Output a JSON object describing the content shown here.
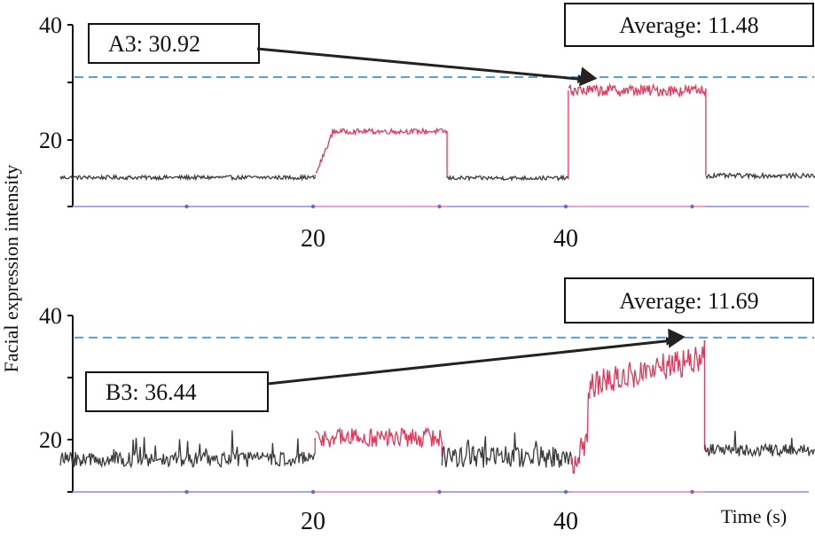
{
  "y_axis_label": "Facial expression intensity",
  "x_axis_label": "Time (s)",
  "colors": {
    "baseline": "#3a3a3a",
    "active": "#e8365a",
    "reference": "#5aa0d8",
    "axis": "#111111",
    "bottom_axis": "#a8a8e0",
    "bottom_axis_active": "#f0a0c8"
  },
  "chart_data": [
    {
      "type": "line",
      "panel": "A",
      "ylim": [
        10,
        40
      ],
      "xlim": [
        0,
        61
      ],
      "y_ticks": [
        20,
        40
      ],
      "x_ticks": [
        20,
        40
      ],
      "average_label": "Average: 11.48",
      "average_value": 11.48,
      "reference_line_value": 30.92,
      "peak_label": "A3: 30.92",
      "peak_point": [
        41.5,
        30.5
      ],
      "segments": [
        {
          "name": "",
          "state": "baseline",
          "x_start": 0,
          "x_end": 20.2,
          "level": 13.5,
          "noise": 0.35
        },
        {
          "name": "",
          "state": "active",
          "x_start": 20.2,
          "x_end": 30.6,
          "level": 21.5,
          "noise": 0.45,
          "ramp_from": 14,
          "ramp_to": 21,
          "ramp_len": 1.3
        },
        {
          "name": "",
          "state": "baseline",
          "x_start": 30.6,
          "x_end": 40.2,
          "level": 13.4,
          "noise": 0.35
        },
        {
          "name": "",
          "state": "active",
          "x_start": 40.2,
          "x_end": 51.1,
          "level": 28.6,
          "noise": 1.0
        },
        {
          "name": "",
          "state": "baseline",
          "x_start": 51.1,
          "x_end": 61,
          "level": 13.8,
          "noise": 0.4
        }
      ]
    },
    {
      "type": "line",
      "panel": "B",
      "ylim": [
        14,
        40
      ],
      "xlim": [
        0,
        61
      ],
      "y_ticks": [
        20,
        40
      ],
      "x_ticks": [
        20,
        40
      ],
      "average_label": "Average: 11.69",
      "average_value": 11.69,
      "reference_line_value": 36.44,
      "peak_label": "B3: 36.44",
      "peak_point": [
        48.5,
        36.0
      ],
      "segments": [
        {
          "name": "",
          "state": "baseline",
          "x_start": 0,
          "x_end": 20.2,
          "level": 16.8,
          "noise": 1.2
        },
        {
          "name": "",
          "state": "active",
          "x_start": 20.2,
          "x_end": 30.2,
          "level": 20.3,
          "noise": 1.6
        },
        {
          "name": "",
          "state": "baseline",
          "x_start": 30.2,
          "x_end": 40.5,
          "level": 17.2,
          "noise": 1.8
        },
        {
          "name": "",
          "state": "active",
          "x_start": 40.5,
          "x_end": 51.0,
          "level": 30.5,
          "noise": 2.3,
          "ramp_from": 16,
          "ramp_to": 34,
          "ramp_len": 8
        },
        {
          "name": "",
          "state": "baseline",
          "x_start": 51.0,
          "x_end": 61,
          "level": 18.3,
          "noise": 1.0
        }
      ]
    }
  ]
}
